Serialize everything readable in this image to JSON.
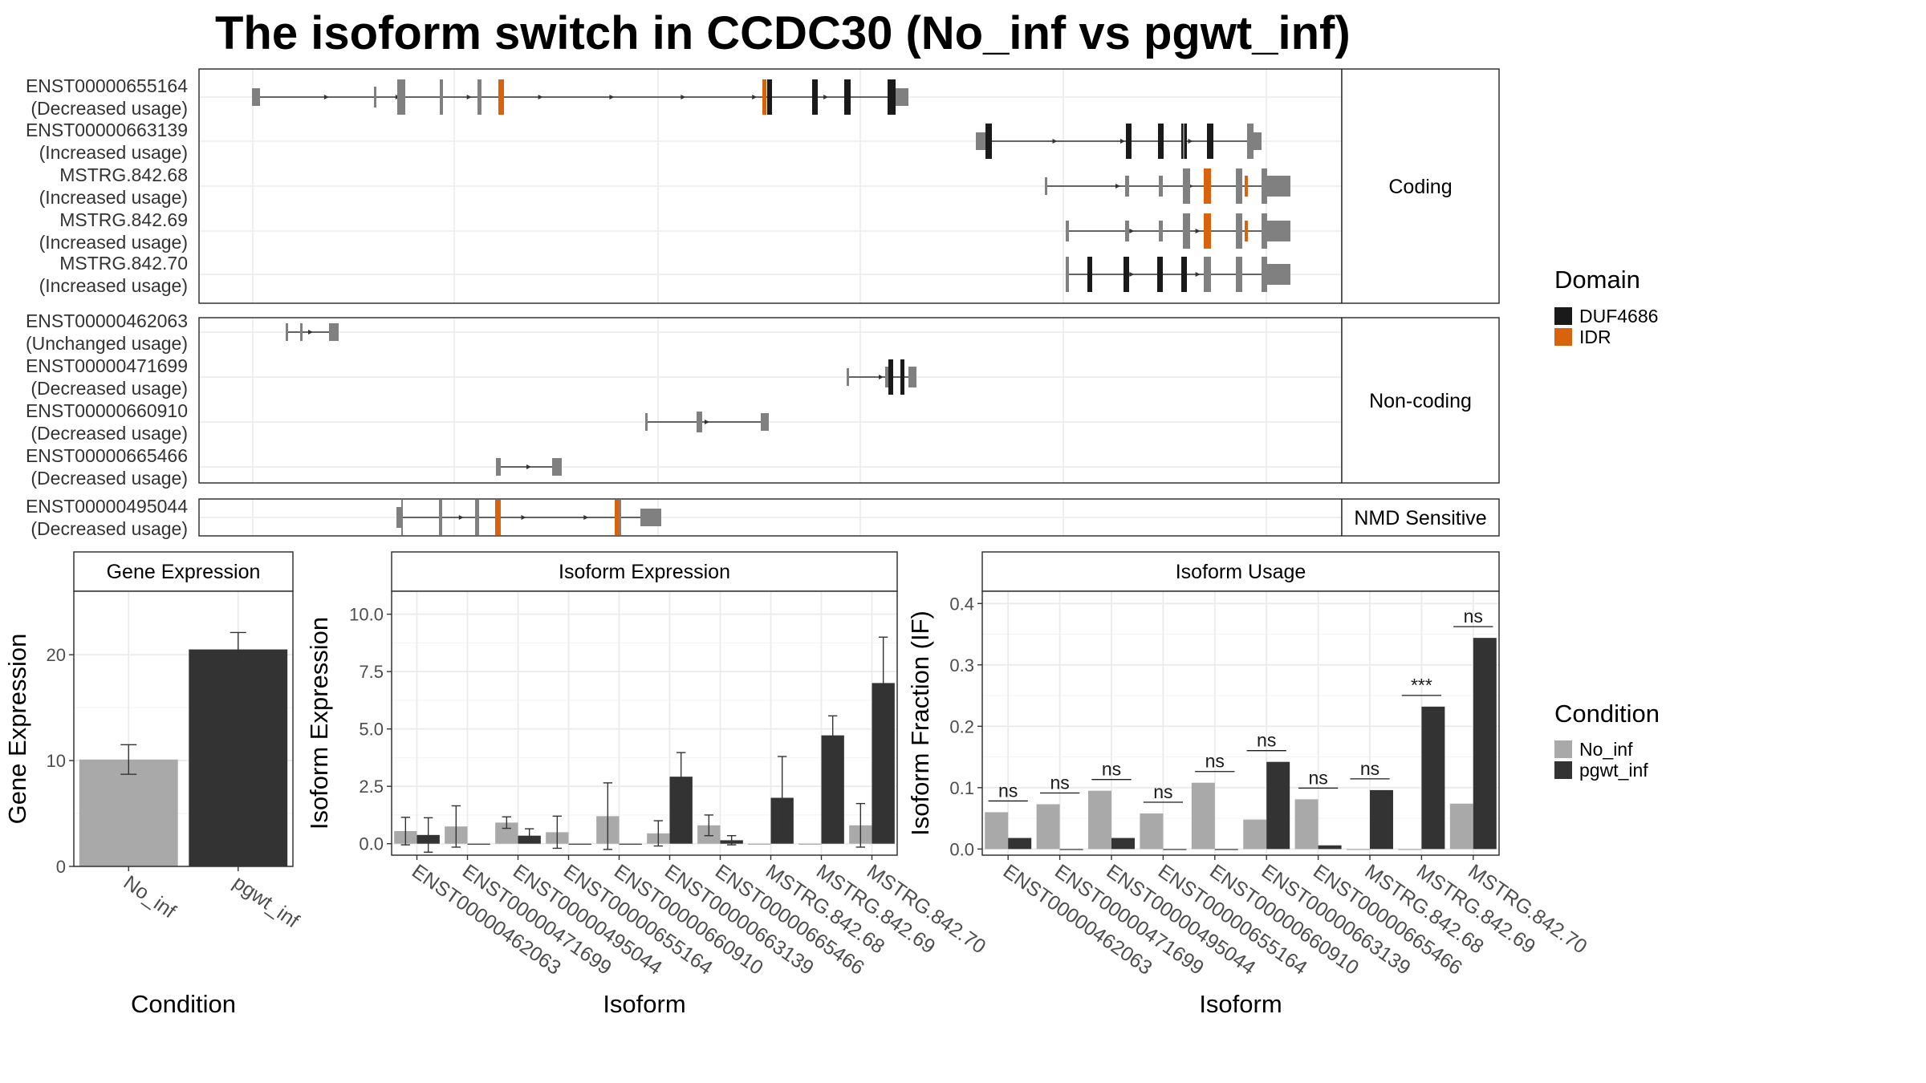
{
  "title": "The isoform switch in CCDC30 (No_inf vs pgwt_inf)",
  "colors": {
    "DUF4686": "#1a1a1a",
    "IDR": "#d9630d",
    "exon": "#808080",
    "No_inf": "#a9a9a9",
    "pgwt_inf": "#333333"
  },
  "structure_panels": [
    {
      "label": "Coding",
      "isoforms": [
        {
          "id": "ENST00000655164",
          "usage": "(Decreased usage)"
        },
        {
          "id": "ENST00000663139",
          "usage": "(Increased usage)"
        },
        {
          "id": "MSTRG.842.68",
          "usage": "(Increased usage)"
        },
        {
          "id": "MSTRG.842.69",
          "usage": "(Increased usage)"
        },
        {
          "id": "MSTRG.842.70",
          "usage": "(Increased usage)"
        }
      ]
    },
    {
      "label": "Non-coding",
      "isoforms": [
        {
          "id": "ENST00000462063",
          "usage": "(Unchanged usage)"
        },
        {
          "id": "ENST00000471699",
          "usage": "(Decreased usage)"
        },
        {
          "id": "ENST00000660910",
          "usage": "(Decreased usage)"
        },
        {
          "id": "ENST00000665466",
          "usage": "(Decreased usage)"
        }
      ]
    },
    {
      "label": "NMD Sensitive",
      "isoforms": [
        {
          "id": "ENST00000495044",
          "usage": "(Decreased usage)"
        }
      ]
    }
  ],
  "legend_domain": {
    "title": "Domain",
    "items": [
      "DUF4686",
      "IDR"
    ]
  },
  "legend_condition": {
    "title": "Condition",
    "items": [
      "No_inf",
      "pgwt_inf"
    ]
  },
  "chart_data": [
    {
      "type": "bar",
      "title": "Gene Expression",
      "xlabel": "Condition",
      "ylabel": "Gene Expression",
      "categories": [
        "No_inf",
        "pgwt_inf"
      ],
      "values": [
        10.1,
        20.5
      ],
      "errors": [
        1.4,
        1.6
      ],
      "ylim": [
        0,
        26
      ],
      "yticks": [
        0,
        10,
        20
      ],
      "grid": true
    },
    {
      "type": "bar",
      "title": "Isoform Expression",
      "xlabel": "Isoform",
      "ylabel": "Isoform Expression",
      "categories": [
        "ENST00000462063",
        "ENST00000471699",
        "ENST00000495044",
        "ENST00000655164",
        "ENST00000660910",
        "ENST00000663139",
        "ENST00000665466",
        "MSTRG.842.68",
        "MSTRG.842.69",
        "MSTRG.842.70"
      ],
      "series": [
        {
          "name": "No_inf",
          "values": [
            0.55,
            0.75,
            0.92,
            0.5,
            1.2,
            0.45,
            0.8,
            0.0,
            0.0,
            0.8
          ],
          "errors": [
            0.6,
            0.9,
            0.25,
            0.7,
            1.45,
            0.55,
            0.45,
            0.0,
            0.0,
            0.95
          ]
        },
        {
          "name": "pgwt_inf",
          "values": [
            0.38,
            0.0,
            0.35,
            0.0,
            0.0,
            2.92,
            0.15,
            2.0,
            4.72,
            7.0
          ],
          "errors": [
            0.75,
            0.0,
            0.3,
            0.0,
            0.0,
            1.05,
            0.2,
            1.8,
            0.85,
            2.0
          ]
        }
      ],
      "ylim": [
        -0.5,
        11
      ],
      "yticks": [
        0.0,
        2.5,
        5.0,
        7.5,
        10.0
      ],
      "grid": true
    },
    {
      "type": "bar",
      "title": "Isoform Usage",
      "xlabel": "Isoform",
      "ylabel": "Isoform Fraction (IF)",
      "categories": [
        "ENST00000462063",
        "ENST00000471699",
        "ENST00000495044",
        "ENST00000655164",
        "ENST00000660910",
        "ENST00000663139",
        "ENST00000665466",
        "MSTRG.842.68",
        "MSTRG.842.69",
        "MSTRG.842.70"
      ],
      "series": [
        {
          "name": "No_inf",
          "values": [
            0.06,
            0.073,
            0.095,
            0.058,
            0.108,
            0.048,
            0.081,
            0.0,
            0.0,
            0.074
          ]
        },
        {
          "name": "pgwt_inf",
          "values": [
            0.018,
            0.0,
            0.018,
            0.0,
            0.0,
            0.142,
            0.006,
            0.096,
            0.232,
            0.344
          ]
        }
      ],
      "significance": [
        "ns",
        "ns",
        "ns",
        "ns",
        "ns",
        "ns",
        "ns",
        "ns",
        "***",
        "ns"
      ],
      "ylim": [
        -0.01,
        0.42
      ],
      "yticks": [
        0.0,
        0.1,
        0.2,
        0.3,
        0.4
      ],
      "grid": true
    }
  ]
}
